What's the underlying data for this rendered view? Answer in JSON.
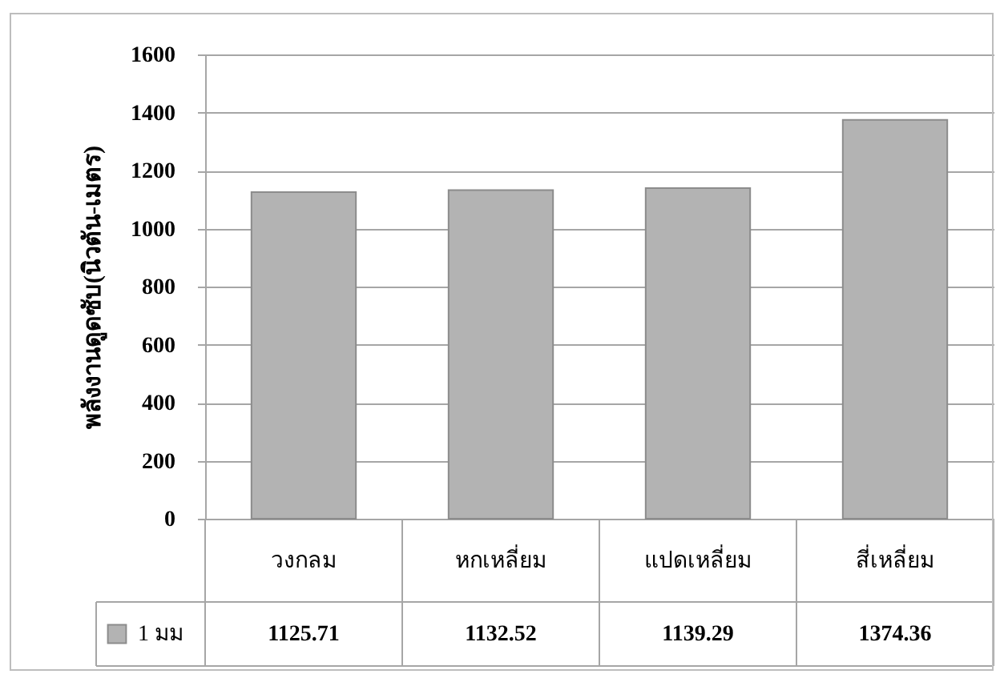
{
  "chart_data": {
    "type": "bar",
    "ylabel": "พลังงานดูดซับ(นิวตัน-เมตร)",
    "categories": [
      "วงกลม",
      "หกเหลี่ยม",
      "แปดเหลี่ยม",
      "สี่เหลี่ยม"
    ],
    "series": [
      {
        "name": "1 มม",
        "color": "#b3b3b3",
        "values": [
          1125.71,
          1132.52,
          1139.29,
          1374.36
        ]
      }
    ],
    "ylim": [
      0,
      1600
    ],
    "yticks": [
      0,
      200,
      400,
      600,
      800,
      1000,
      1200,
      1400,
      1600
    ],
    "grid": "y",
    "legend": "bottom left",
    "data_labels": true
  }
}
